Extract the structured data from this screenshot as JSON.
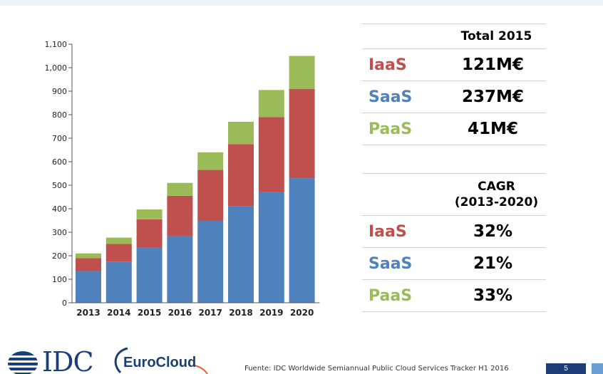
{
  "chart_data": {
    "type": "bar",
    "stacked": true,
    "categories": [
      "2013",
      "2014",
      "2015",
      "2016",
      "2017",
      "2018",
      "2019",
      "2020"
    ],
    "series": [
      {
        "name": "SaaS",
        "color": "#4f81bd",
        "values": [
          135,
          175,
          235,
          285,
          350,
          410,
          470,
          530
        ]
      },
      {
        "name": "IaaS",
        "color": "#c0504d",
        "values": [
          55,
          75,
          120,
          170,
          215,
          265,
          320,
          380
        ]
      },
      {
        "name": "PaaS",
        "color": "#9bbb59",
        "values": [
          20,
          27,
          42,
          55,
          75,
          95,
          115,
          140
        ]
      }
    ],
    "yticks": [
      "0",
      "100",
      "200",
      "300",
      "400",
      "500",
      "600",
      "700",
      "800",
      "900",
      "1,000",
      "1,100"
    ],
    "ylim": [
      0,
      1100
    ],
    "grid": false,
    "legend": "none"
  },
  "total_table": {
    "header": "Total 2015",
    "rows": [
      {
        "label": "IaaS",
        "value": "121M€",
        "color": "#c0504d"
      },
      {
        "label": "SaaS",
        "value": "237M€",
        "color": "#4f81bd"
      },
      {
        "label": "PaaS",
        "value": "41M€",
        "color": "#9bbb59"
      }
    ]
  },
  "cagr_table": {
    "header_line1": "CAGR",
    "header_line2": "(2013-2020)",
    "rows": [
      {
        "label": "IaaS",
        "value": "32%",
        "color": "#c0504d"
      },
      {
        "label": "SaaS",
        "value": "21%",
        "color": "#4f81bd"
      },
      {
        "label": "PaaS",
        "value": "33%",
        "color": "#9bbb59"
      }
    ]
  },
  "footer": {
    "idc_logo": "IDC",
    "eurocloud_logo": "EuroCloud",
    "source": "Fuente: IDC Worldwide Semiannual Public Cloud Services Tracker H1 2016",
    "page_number": "5"
  }
}
